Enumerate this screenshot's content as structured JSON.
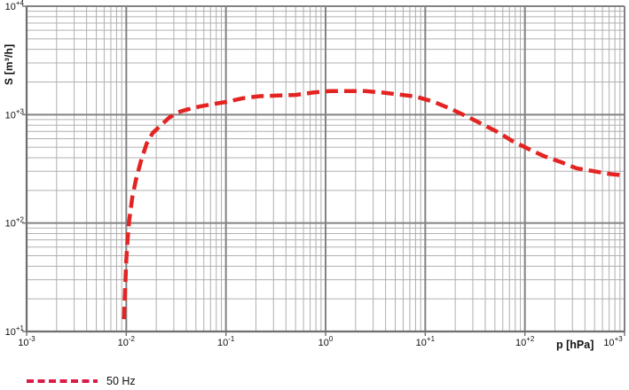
{
  "chart_data": {
    "type": "line",
    "title": "",
    "xlabel": "p [hPa]",
    "ylabel": "S [m³/h]",
    "x_scale": "log",
    "y_scale": "log",
    "xlim": [
      0.001,
      1000
    ],
    "ylim": [
      10,
      10000
    ],
    "grid": "major+minor",
    "tick_base": "10",
    "x_tick_exponents": [
      "-3",
      "-2",
      "-1",
      "0",
      "+1",
      "+2",
      "+3"
    ],
    "y_tick_exponents": [
      "+1",
      "+2",
      "+3",
      "+4"
    ],
    "legend_position": "bottom-left",
    "series": [
      {
        "name": "50 Hz",
        "type": "line",
        "line_style": "dashed",
        "color": "#e32422",
        "points": [
          [
            0.0095,
            13
          ],
          [
            0.0096,
            18
          ],
          [
            0.0098,
            28
          ],
          [
            0.01,
            45
          ],
          [
            0.0103,
            70
          ],
          [
            0.0107,
            105
          ],
          [
            0.0115,
            175
          ],
          [
            0.0125,
            250
          ],
          [
            0.014,
            370
          ],
          [
            0.016,
            540
          ],
          [
            0.0185,
            680
          ],
          [
            0.022,
            790
          ],
          [
            0.027,
            940
          ],
          [
            0.033,
            1050
          ],
          [
            0.04,
            1110
          ],
          [
            0.055,
            1190
          ],
          [
            0.07,
            1240
          ],
          [
            0.1,
            1310
          ],
          [
            0.15,
            1420
          ],
          [
            0.22,
            1480
          ],
          [
            0.33,
            1500
          ],
          [
            0.5,
            1520
          ],
          [
            0.75,
            1600
          ],
          [
            1.1,
            1650
          ],
          [
            1.6,
            1650
          ],
          [
            2.5,
            1650
          ],
          [
            3.7,
            1600
          ],
          [
            5.5,
            1530
          ],
          [
            8,
            1470
          ],
          [
            12,
            1320
          ],
          [
            18,
            1130
          ],
          [
            27,
            950
          ],
          [
            39,
            800
          ],
          [
            55,
            680
          ],
          [
            75,
            570
          ],
          [
            110,
            480
          ],
          [
            155,
            415
          ],
          [
            230,
            365
          ],
          [
            330,
            320
          ],
          [
            500,
            300
          ],
          [
            720,
            283
          ],
          [
            1000,
            275
          ]
        ]
      }
    ]
  },
  "legend": {
    "items": [
      {
        "label": "50 Hz"
      }
    ]
  },
  "colors": {
    "curve": "#e32422",
    "legend_swatch": "#dc1a48",
    "grid_major": "#828282",
    "grid_minor": "#b0b0b0",
    "axis": "#6e6e6e",
    "text": "#111111",
    "background": "#ffffff"
  }
}
